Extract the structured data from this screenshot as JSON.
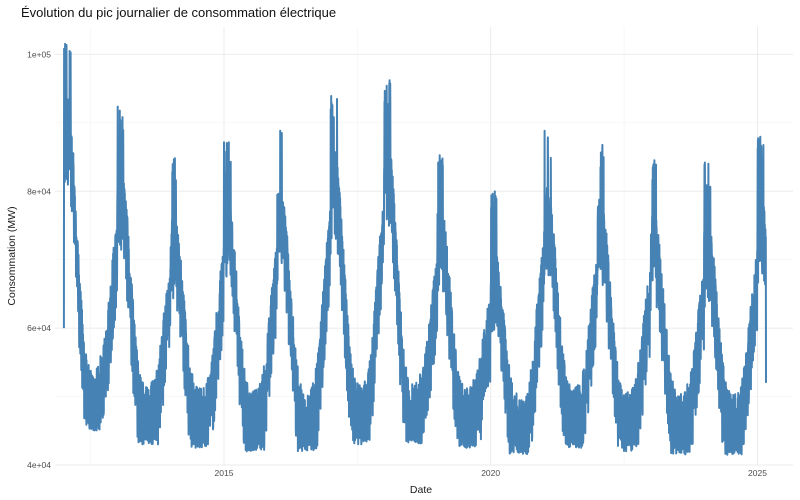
{
  "chart_data": {
    "type": "line",
    "title": "Évolution du pic journalier de consommation électrique",
    "xlabel": "Date",
    "ylabel": "Consommation (MW)",
    "x_axis": {
      "type": "date",
      "range": [
        "2011-11-01",
        "2025-09-01"
      ],
      "ticks": [
        "2015",
        "2020",
        "2025"
      ]
    },
    "y_axis": {
      "range": [
        40000,
        104000
      ],
      "ticks": [
        40000,
        60000,
        80000,
        100000
      ],
      "tick_labels": [
        "4e+04",
        "6e+04",
        "8e+04",
        "1e+05"
      ]
    },
    "grid": true,
    "legend": "none",
    "series": [
      {
        "color": "#4682b4",
        "data_start": "2012-01-01",
        "data_end": "2025-02-28",
        "resolution": "daily",
        "seasonal_profile": [
          {
            "year": 2012,
            "winter_peak": 102000,
            "summer_low": 45000
          },
          {
            "year": 2013,
            "winter_peak": 92500,
            "summer_low": 43000
          },
          {
            "year": 2014,
            "winter_peak": 85000,
            "summer_low": 42500
          },
          {
            "year": 2015,
            "winter_peak": 88000,
            "summer_low": 42000
          },
          {
            "year": 2016,
            "winter_peak": 89000,
            "summer_low": 42000
          },
          {
            "year": 2017,
            "winter_peak": 94500,
            "summer_low": 43000
          },
          {
            "year": 2018,
            "winter_peak": 96500,
            "summer_low": 43000
          },
          {
            "year": 2019,
            "winter_peak": 86500,
            "summer_low": 42500
          },
          {
            "year": 2020,
            "winter_peak": 80000,
            "summer_low": 41500
          },
          {
            "year": 2021,
            "winter_peak": 89000,
            "summer_low": 42500
          },
          {
            "year": 2022,
            "winter_peak": 87500,
            "summer_low": 42000
          },
          {
            "year": 2023,
            "winter_peak": 85000,
            "summer_low": 41500
          },
          {
            "year": 2024,
            "winter_peak": 84500,
            "summer_low": 41500
          },
          {
            "year": 2025,
            "winter_peak": 88000,
            "summer_low": null
          }
        ],
        "start_value": 60000,
        "end_value": 52000
      }
    ]
  }
}
